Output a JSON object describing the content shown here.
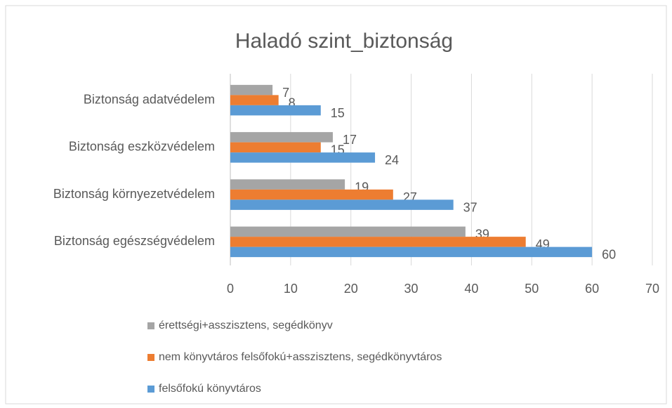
{
  "chart_data": {
    "type": "bar",
    "orientation": "horizontal",
    "title": "Haladó szint_biztonság",
    "categories": [
      "Biztonság adatvédelem",
      "Biztonság eszközvédelem",
      "Biztonság környezetvédelem",
      "Biztonság egészségvédelem"
    ],
    "series": [
      {
        "name": "érettségi+asszisztens, segédkönyv",
        "color": "#a5a5a5",
        "values": [
          7,
          17,
          19,
          39
        ]
      },
      {
        "name": "nem könyvtáros felsőfokú+asszisztens, segédkönyvtáros",
        "color": "#ed7d31",
        "values": [
          8,
          15,
          27,
          49
        ]
      },
      {
        "name": "felsőfokú könyvtáros",
        "color": "#5b9bd5",
        "values": [
          15,
          24,
          37,
          60
        ]
      }
    ],
    "xlim": [
      0,
      70
    ],
    "xticks": [
      0,
      10,
      20,
      30,
      40,
      50,
      60,
      70
    ],
    "grid": true,
    "legend": "bottom"
  }
}
